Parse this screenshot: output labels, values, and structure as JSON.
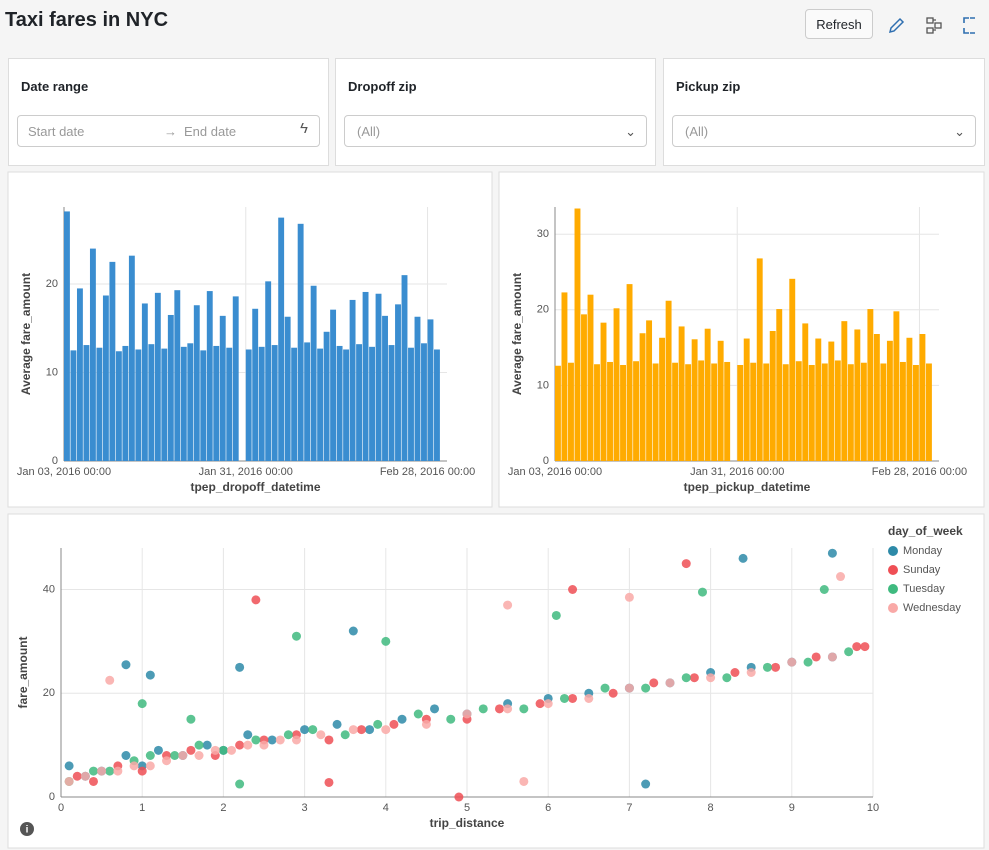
{
  "header": {
    "title": "Taxi fares in NYC",
    "refresh": "Refresh"
  },
  "filters": [
    {
      "label": "Date range",
      "start_placeholder": "Start date",
      "end_placeholder": "End date"
    },
    {
      "label": "Dropoff zip",
      "value": "(All)"
    },
    {
      "label": "Pickup zip",
      "value": "(All)"
    }
  ],
  "chart_data": [
    {
      "type": "bar",
      "x_label": "tpep_dropoff_datetime",
      "y_label": "Average fare_amount",
      "color": "#3a8dd0",
      "grid": true,
      "x": [
        "2016-01-03 00:00",
        "2016-01-04 00:00",
        "2016-01-05 00:00",
        "2016-01-06 00:00",
        "2016-01-07 00:00",
        "2016-01-08 00:00",
        "2016-01-09 00:00",
        "2016-01-10 00:00",
        "2016-01-11 00:00",
        "2016-01-12 00:00",
        "2016-01-13 00:00",
        "2016-01-14 00:00",
        "2016-01-15 00:00",
        "2016-01-16 00:00",
        "2016-01-17 00:00",
        "2016-01-18 00:00",
        "2016-01-19 00:00",
        "2016-01-20 00:00",
        "2016-01-21 00:00",
        "2016-01-22 00:00",
        "2016-01-23 00:00",
        "2016-01-24 00:00",
        "2016-01-25 00:00",
        "2016-01-26 00:00",
        "2016-01-27 00:00",
        "2016-01-28 00:00",
        "2016-01-29 00:00",
        "2016-01-30 00:00",
        "2016-01-31 00:00",
        "2016-02-01 00:00",
        "2016-02-02 00:00",
        "2016-02-03 00:00",
        "2016-02-04 00:00",
        "2016-02-05 00:00",
        "2016-02-06 00:00",
        "2016-02-07 00:00",
        "2016-02-08 00:00",
        "2016-02-09 00:00",
        "2016-02-10 00:00",
        "2016-02-11 00:00",
        "2016-02-12 00:00",
        "2016-02-13 00:00",
        "2016-02-14 00:00",
        "2016-02-15 00:00",
        "2016-02-16 00:00",
        "2016-02-17 00:00",
        "2016-02-18 00:00",
        "2016-02-19 00:00",
        "2016-02-20 00:00",
        "2016-02-21 00:00",
        "2016-02-22 00:00",
        "2016-02-23 00:00",
        "2016-02-24 00:00",
        "2016-02-25 00:00",
        "2016-02-26 00:00",
        "2016-02-27 00:00",
        "2016-02-28 00:00",
        "2016-02-29 00:00"
      ],
      "values": [
        28.2,
        12.5,
        19.5,
        13.1,
        24.0,
        12.8,
        18.7,
        22.5,
        12.4,
        13.0,
        23.2,
        12.6,
        17.8,
        13.2,
        19.0,
        12.7,
        16.5,
        19.3,
        12.9,
        13.3,
        17.6,
        12.5,
        19.2,
        13.0,
        16.4,
        12.8,
        18.6,
        null,
        12.6,
        17.2,
        12.9,
        20.3,
        13.1,
        27.5,
        16.3,
        12.8,
        26.8,
        13.4,
        19.8,
        12.7,
        14.6,
        17.1,
        13.0,
        12.6,
        18.2,
        13.2,
        19.1,
        12.9,
        18.9,
        16.4,
        13.1,
        17.7,
        21.0,
        12.8,
        16.3,
        13.3,
        16.0,
        12.6
      ],
      "xlim": [
        "2016-01-03 00:00",
        "2016-03-02 00:00"
      ],
      "xticks": [
        {
          "value": "2016-01-03 00:00",
          "label": "Jan 03, 2016 00:00"
        },
        {
          "value": "2016-01-31 00:00",
          "label": "Jan 31, 2016 00:00"
        },
        {
          "value": "2016-02-28 00:00",
          "label": "Feb 28, 2016 00:00"
        }
      ],
      "ylim": [
        0,
        28.7
      ],
      "yticks": [
        0,
        10,
        20
      ]
    },
    {
      "type": "bar",
      "x_label": "tpep_pickup_datetime",
      "y_label": "Average fare_amount",
      "color": "#ffab00",
      "grid": true,
      "x": [
        "2016-01-03 00:00",
        "2016-01-04 00:00",
        "2016-01-05 00:00",
        "2016-01-06 00:00",
        "2016-01-07 00:00",
        "2016-01-08 00:00",
        "2016-01-09 00:00",
        "2016-01-10 00:00",
        "2016-01-11 00:00",
        "2016-01-12 00:00",
        "2016-01-13 00:00",
        "2016-01-14 00:00",
        "2016-01-15 00:00",
        "2016-01-16 00:00",
        "2016-01-17 00:00",
        "2016-01-18 00:00",
        "2016-01-19 00:00",
        "2016-01-20 00:00",
        "2016-01-21 00:00",
        "2016-01-22 00:00",
        "2016-01-23 00:00",
        "2016-01-24 00:00",
        "2016-01-25 00:00",
        "2016-01-26 00:00",
        "2016-01-27 00:00",
        "2016-01-28 00:00",
        "2016-01-29 00:00",
        "2016-01-30 00:00",
        "2016-01-31 00:00",
        "2016-02-01 00:00",
        "2016-02-02 00:00",
        "2016-02-03 00:00",
        "2016-02-04 00:00",
        "2016-02-05 00:00",
        "2016-02-06 00:00",
        "2016-02-07 00:00",
        "2016-02-08 00:00",
        "2016-02-09 00:00",
        "2016-02-10 00:00",
        "2016-02-11 00:00",
        "2016-02-12 00:00",
        "2016-02-13 00:00",
        "2016-02-14 00:00",
        "2016-02-15 00:00",
        "2016-02-16 00:00",
        "2016-02-17 00:00",
        "2016-02-18 00:00",
        "2016-02-19 00:00",
        "2016-02-20 00:00",
        "2016-02-21 00:00",
        "2016-02-22 00:00",
        "2016-02-23 00:00",
        "2016-02-24 00:00",
        "2016-02-25 00:00",
        "2016-02-26 00:00",
        "2016-02-27 00:00",
        "2016-02-28 00:00",
        "2016-02-29 00:00"
      ],
      "values": [
        12.6,
        22.3,
        13.0,
        33.4,
        19.4,
        22.0,
        12.8,
        18.3,
        13.1,
        20.2,
        12.7,
        23.4,
        13.2,
        16.9,
        18.6,
        12.9,
        16.3,
        21.2,
        13.0,
        17.8,
        12.8,
        16.1,
        13.3,
        17.5,
        12.9,
        15.9,
        13.1,
        null,
        12.7,
        16.2,
        13.0,
        26.8,
        12.9,
        17.2,
        20.1,
        12.8,
        24.1,
        13.2,
        18.2,
        12.7,
        16.2,
        12.9,
        15.8,
        13.3,
        18.5,
        12.8,
        17.4,
        13.0,
        20.1,
        16.8,
        12.9,
        15.9,
        19.8,
        13.1,
        16.3,
        12.7,
        16.8,
        12.9
      ],
      "xlim": [
        "2016-01-03 00:00",
        "2016-03-02 00:00"
      ],
      "xticks": [
        {
          "value": "2016-01-03 00:00",
          "label": "Jan 03, 2016 00:00"
        },
        {
          "value": "2016-01-31 00:00",
          "label": "Jan 31, 2016 00:00"
        },
        {
          "value": "2016-02-28 00:00",
          "label": "Feb 28, 2016 00:00"
        }
      ],
      "ylim": [
        0,
        33.6
      ],
      "yticks": [
        0,
        10,
        20,
        30
      ]
    },
    {
      "type": "scatter",
      "x_label": "trip_distance",
      "y_label": "fare_amount",
      "legend_title": "day_of_week",
      "legend": "top-right",
      "grid": true,
      "xlim": [
        0,
        10
      ],
      "xticks": [
        0,
        1,
        2,
        3,
        4,
        5,
        6,
        7,
        8,
        9,
        10
      ],
      "ylim": [
        0,
        48
      ],
      "yticks": [
        0,
        20,
        40
      ],
      "series": [
        {
          "name": "Monday",
          "color": "#2d8aa8",
          "x": [
            0.1,
            0.3,
            0.5,
            0.8,
            1.0,
            1.2,
            1.5,
            1.8,
            2.0,
            2.3,
            2.6,
            3.0,
            3.4,
            3.8,
            4.2,
            4.6,
            5.0,
            5.5,
            6.0,
            6.5,
            7.0,
            7.5,
            8.0,
            8.5,
            9.0,
            9.5,
            0.8,
            1.1,
            2.2,
            3.6,
            7.2,
            8.4,
            9.5
          ],
          "values": [
            6,
            4,
            5,
            8,
            6,
            9,
            8,
            10,
            9,
            12,
            11,
            13,
            14,
            13,
            15,
            17,
            16,
            18,
            19,
            20,
            21,
            22,
            24,
            25,
            26,
            27,
            25.5,
            23.5,
            25,
            32,
            2.5,
            46,
            47
          ]
        },
        {
          "name": "Sunday",
          "color": "#ef4f55",
          "x": [
            0.2,
            0.4,
            0.7,
            1.0,
            1.3,
            1.6,
            1.9,
            2.2,
            2.5,
            2.9,
            3.3,
            3.7,
            4.1,
            4.5,
            5.0,
            5.4,
            5.9,
            6.3,
            6.8,
            7.3,
            7.8,
            8.3,
            8.8,
            9.3,
            9.8,
            2.4,
            3.3,
            4.9,
            6.3,
            7.7,
            9.9
          ],
          "values": [
            4,
            3,
            6,
            5,
            8,
            9,
            8,
            10,
            11,
            12,
            11,
            13,
            14,
            15,
            15,
            17,
            18,
            19,
            20,
            22,
            23,
            24,
            25,
            27,
            29,
            38,
            2.8,
            0,
            40,
            45,
            29
          ]
        },
        {
          "name": "Tuesday",
          "color": "#3fba7f",
          "x": [
            0.1,
            0.4,
            0.6,
            0.9,
            1.1,
            1.4,
            1.7,
            2.0,
            2.4,
            2.8,
            3.1,
            3.5,
            3.9,
            4.4,
            4.8,
            5.2,
            5.7,
            6.2,
            6.7,
            7.2,
            7.7,
            8.2,
            8.7,
            9.2,
            9.7,
            1.0,
            1.6,
            2.2,
            2.9,
            4.0,
            6.1,
            7.9,
            9.4
          ],
          "values": [
            3,
            5,
            5,
            7,
            8,
            8,
            10,
            9,
            11,
            12,
            13,
            12,
            14,
            16,
            15,
            17,
            17,
            19,
            21,
            21,
            23,
            23,
            25,
            26,
            28,
            18,
            15,
            2.5,
            31,
            30,
            35,
            39.5,
            40
          ]
        },
        {
          "name": "Wednesday",
          "color": "#f9a9a7",
          "x": [
            0.1,
            0.3,
            0.5,
            0.7,
            0.9,
            1.1,
            1.3,
            1.5,
            1.7,
            1.9,
            2.1,
            2.3,
            2.5,
            2.7,
            2.9,
            3.2,
            3.6,
            4.0,
            4.5,
            5.0,
            5.5,
            6.0,
            6.5,
            7.0,
            7.5,
            8.0,
            8.5,
            9.0,
            9.5,
            0.6,
            5.5,
            5.7,
            7.0,
            9.6
          ],
          "values": [
            3,
            4,
            5,
            5,
            6,
            6,
            7,
            8,
            8,
            9,
            9,
            10,
            10,
            11,
            11,
            12,
            13,
            13,
            14,
            16,
            17,
            18,
            19,
            21,
            22,
            23,
            24,
            26,
            27,
            22.5,
            37,
            3,
            38.5,
            42.5
          ]
        }
      ]
    }
  ]
}
